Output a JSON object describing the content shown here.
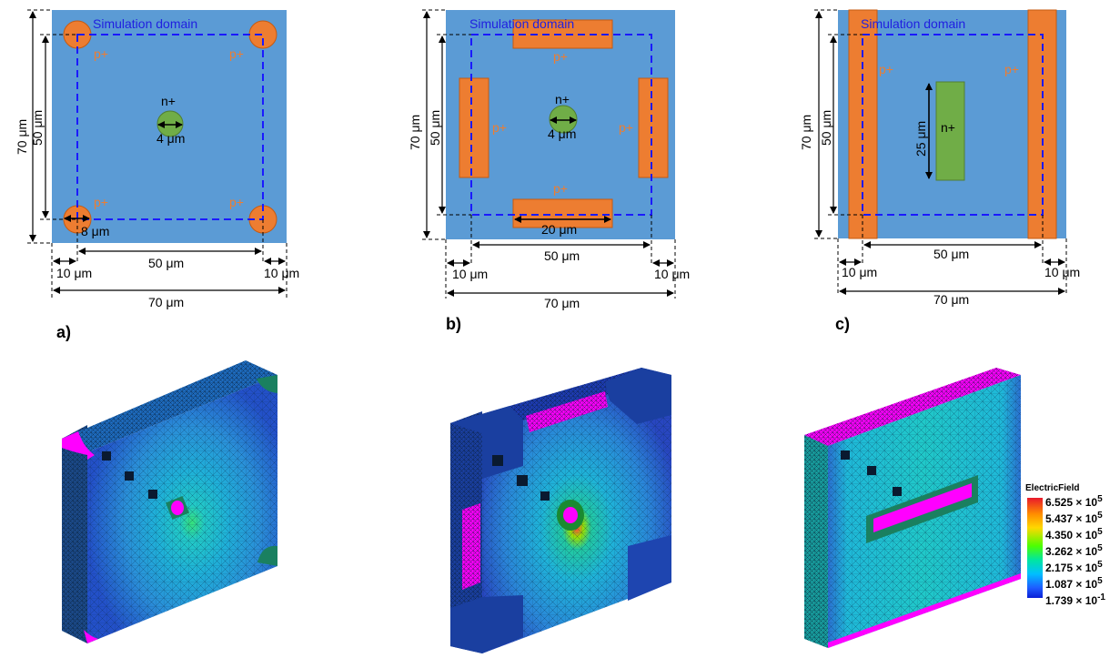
{
  "panel_a": {
    "sublabel": "a)",
    "domain_label": "Simulation domain",
    "p_labels": [
      "p+",
      "p+",
      "p+",
      "p+"
    ],
    "n_label": "n+",
    "dim_outer_height": "70 μm",
    "dim_inner_height": "50 μm",
    "dim_contact": "4 μm",
    "dim_corner": "8 μm",
    "dim_left_gap": "10 μm",
    "dim_inner_width": "50 μm",
    "dim_right_gap": "10 μm",
    "dim_outer_width": "70 μm"
  },
  "panel_b": {
    "sublabel": "b)",
    "domain_label": "Simulation domain",
    "p_labels": [
      "p+",
      "p+",
      "p+",
      "p+"
    ],
    "n_label": "n+",
    "dim_outer_height": "70 μm",
    "dim_inner_height": "50 μm",
    "dim_contact": "4 μm",
    "dim_bar": "20 μm",
    "dim_left_gap": "10 μm",
    "dim_inner_width": "50 μm",
    "dim_right_gap": "10 μm",
    "dim_outer_width": "70 μm"
  },
  "panel_c": {
    "sublabel": "c)",
    "domain_label": "Simulation domain",
    "p_labels": [
      "p+",
      "p+"
    ],
    "n_label": "n+",
    "dim_outer_height": "70 μm",
    "dim_inner_height": "50 μm",
    "dim_n_height": "25 μm",
    "dim_left_gap": "10 μm",
    "dim_inner_width": "50 μm",
    "dim_right_gap": "10 μm",
    "dim_outer_width": "70 μm"
  },
  "legend": {
    "title": "ElectricField",
    "ticks": [
      {
        "mantissa": "6.525",
        "exp": "5"
      },
      {
        "mantissa": "5.437",
        "exp": "5"
      },
      {
        "mantissa": "4.350",
        "exp": "5"
      },
      {
        "mantissa": "3.262",
        "exp": "5"
      },
      {
        "mantissa": "2.175",
        "exp": "5"
      },
      {
        "mantissa": "1.087",
        "exp": "5"
      },
      {
        "mantissa": "1.739",
        "exp": "-1"
      }
    ]
  },
  "colors": {
    "substrate": "#5b9bd5",
    "p_implant": "#ed7d31",
    "n_implant": "#70ad47",
    "domain_line": "#1a1aff",
    "domain_text": "#2020e0",
    "mesh_magenta": "#ff00ff"
  }
}
